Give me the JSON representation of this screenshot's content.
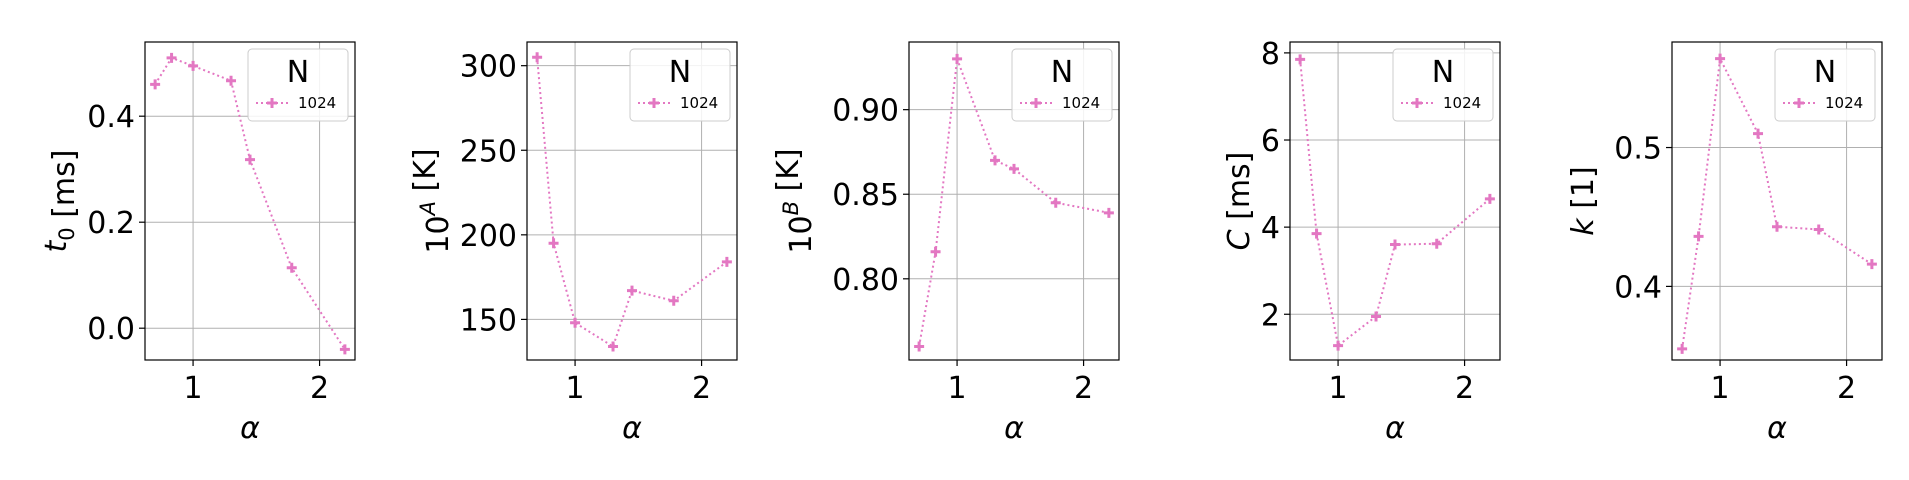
{
  "chart_data": [
    {
      "type": "line",
      "xlabel": "α",
      "ylabel": {
        "main": "t",
        "sub": "0",
        "sup": "",
        "unit": " [ms]"
      },
      "xlim": [
        0.62,
        2.28
      ],
      "ylim": [
        -0.06,
        0.54
      ],
      "xticks": [
        1,
        2
      ],
      "yticks": [
        0.0,
        0.2,
        0.4
      ],
      "ytick_labels": [
        "0.0",
        "0.2",
        "0.4"
      ],
      "grid": true,
      "legend": {
        "title": "N",
        "placement": "top-right",
        "entries": [
          "1024"
        ]
      },
      "series": [
        {
          "name": "1024",
          "color": "#e377c2",
          "x": [
            0.7,
            0.83,
            1.0,
            1.3,
            1.45,
            1.78,
            2.2
          ],
          "y": [
            0.46,
            0.51,
            0.495,
            0.467,
            0.318,
            0.114,
            -0.04
          ]
        }
      ]
    },
    {
      "type": "line",
      "xlabel": "α",
      "ylabel": {
        "main": "10",
        "sub": "",
        "sup": "A",
        "unit": " [K]"
      },
      "xlim": [
        0.62,
        2.28
      ],
      "ylim": [
        126,
        314
      ],
      "xticks": [
        1,
        2
      ],
      "yticks": [
        150,
        200,
        250,
        300
      ],
      "ytick_labels": [
        "150",
        "200",
        "250",
        "300"
      ],
      "grid": true,
      "legend": {
        "title": "N",
        "placement": "top-right",
        "entries": [
          "1024"
        ]
      },
      "series": [
        {
          "name": "1024",
          "color": "#e377c2",
          "x": [
            0.7,
            0.83,
            1.0,
            1.3,
            1.45,
            1.78,
            2.2
          ],
          "y": [
            305,
            195,
            148,
            134,
            167,
            161,
            184
          ]
        }
      ]
    },
    {
      "type": "line",
      "xlabel": "α",
      "ylabel": {
        "main": "10",
        "sub": "",
        "sup": "B",
        "unit": " [K]"
      },
      "xlim": [
        0.62,
        2.28
      ],
      "ylim": [
        0.752,
        0.94
      ],
      "xticks": [
        1,
        2
      ],
      "yticks": [
        0.8,
        0.85,
        0.9
      ],
      "ytick_labels": [
        "0.80",
        "0.85",
        "0.90"
      ],
      "grid": true,
      "legend": {
        "title": "N",
        "placement": "top-right",
        "entries": [
          "1024"
        ]
      },
      "series": [
        {
          "name": "1024",
          "color": "#e377c2",
          "x": [
            0.7,
            0.83,
            1.0,
            1.3,
            1.45,
            1.78,
            2.2
          ],
          "y": [
            0.76,
            0.816,
            0.93,
            0.87,
            0.865,
            0.845,
            0.839
          ]
        }
      ]
    },
    {
      "type": "line",
      "xlabel": "α",
      "ylabel": {
        "main": "C",
        "sub": "",
        "sup": "",
        "unit": " [ms]"
      },
      "xlim": [
        0.62,
        2.28
      ],
      "ylim": [
        0.95,
        8.25
      ],
      "xticks": [
        1,
        2
      ],
      "yticks": [
        2,
        4,
        6,
        8
      ],
      "ytick_labels": [
        "2",
        "4",
        "6",
        "8"
      ],
      "grid": true,
      "legend": {
        "title": "N",
        "placement": "top-right",
        "entries": [
          "1024"
        ]
      },
      "series": [
        {
          "name": "1024",
          "color": "#e377c2",
          "x": [
            0.7,
            0.83,
            1.0,
            1.3,
            1.45,
            1.78,
            2.2
          ],
          "y": [
            7.85,
            3.85,
            1.28,
            1.95,
            3.6,
            3.62,
            4.65
          ]
        }
      ]
    },
    {
      "type": "line",
      "xlabel": "α",
      "ylabel": {
        "main": "k",
        "sub": "",
        "sup": "",
        "unit": " [1]"
      },
      "xlim": [
        0.62,
        2.28
      ],
      "ylim": [
        0.347,
        0.576
      ],
      "xticks": [
        1,
        2
      ],
      "yticks": [
        0.4,
        0.5
      ],
      "ytick_labels": [
        "0.4",
        "0.5"
      ],
      "grid": true,
      "legend": {
        "title": "N",
        "placement": "top-right",
        "entries": [
          "1024"
        ]
      },
      "series": [
        {
          "name": "1024",
          "color": "#e377c2",
          "x": [
            0.7,
            0.83,
            1.0,
            1.3,
            1.45,
            1.78,
            2.2
          ],
          "y": [
            0.355,
            0.436,
            0.564,
            0.51,
            0.443,
            0.441,
            0.416
          ]
        }
      ]
    }
  ]
}
